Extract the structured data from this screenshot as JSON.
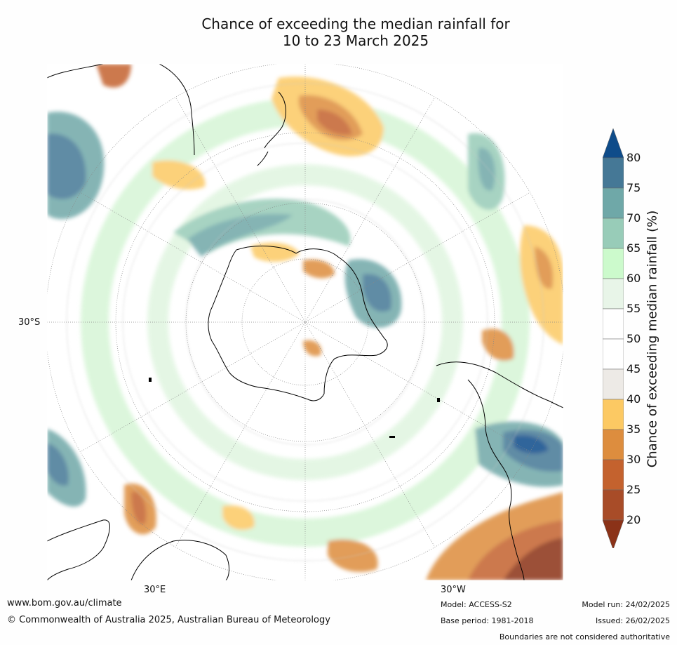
{
  "title_line1": "Chance of exceeding the median rainfall for",
  "title_line2": "10 to 23 March 2025",
  "axes": {
    "lat_label": "30°S",
    "lon_labels": [
      "30°E",
      "30°W"
    ]
  },
  "colorbar": {
    "title": "Chance of exceeding median rainfall (%)",
    "ticks": [
      "80",
      "75",
      "70",
      "65",
      "60",
      "55",
      "50",
      "45",
      "40",
      "35",
      "30",
      "25",
      "20"
    ],
    "bands": [
      {
        "range": ">80",
        "color": "#0f4c8a"
      },
      {
        "range": "75-80",
        "color": "#457896"
      },
      {
        "range": "70-75",
        "color": "#6fa8a8"
      },
      {
        "range": "65-70",
        "color": "#98ccb8"
      },
      {
        "range": "60-65",
        "color": "#ccfacc"
      },
      {
        "range": "55-60",
        "color": "#e8f5e8"
      },
      {
        "range": "50-55",
        "color": "#ffffff"
      },
      {
        "range": "45-50",
        "color": "#ffffff"
      },
      {
        "range": "40-45",
        "color": "#edeae6"
      },
      {
        "range": "35-40",
        "color": "#fcc963"
      },
      {
        "range": "30-35",
        "color": "#dd8d3e"
      },
      {
        "range": "25-30",
        "color": "#c4622e"
      },
      {
        "range": "20-25",
        "color": "#a84c28"
      },
      {
        "range": "<20",
        "color": "#8b3218"
      }
    ]
  },
  "footer": {
    "website": "www.bom.gov.au/climate",
    "copyright": "© Commonwealth of Australia 2025, Australian Bureau of Meteorology",
    "model": "Model: ACCESS-S2",
    "base_period": "Base period: 1981-2018",
    "model_run": "Model run: 24/02/2025",
    "issued": "Issued: 26/02/2025",
    "disclaimer": "Boundaries are not considered authoritative"
  }
}
